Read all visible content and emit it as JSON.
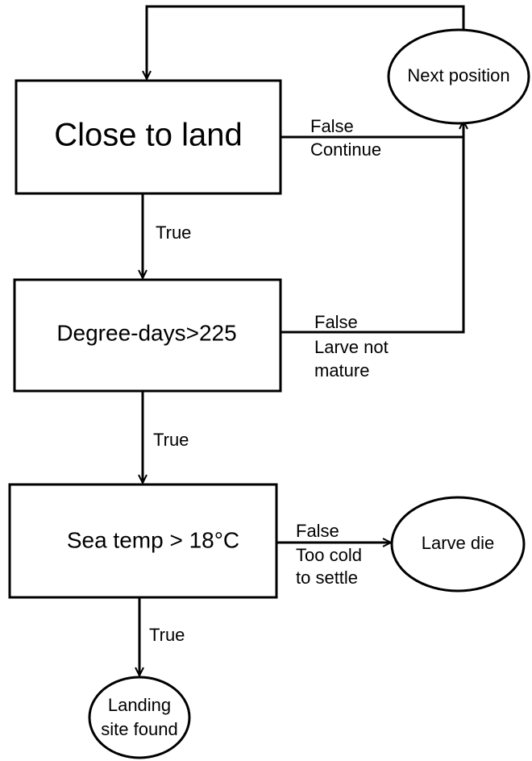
{
  "nodes": [
    {
      "lines": [
        "Close to land"
      ]
    },
    {
      "lines": [
        "Next position"
      ]
    },
    {
      "lines": [
        "Degree-days>225"
      ]
    },
    {
      "lines": [
        "Sea temp > 18°C"
      ]
    },
    {
      "lines": [
        "Larve die"
      ]
    },
    {
      "lines": [
        "Landing",
        "site found"
      ]
    }
  ],
  "edges": [
    {
      "lines": [
        "False",
        "Continue"
      ]
    },
    {
      "lines": [
        "True"
      ]
    },
    {
      "lines": [
        "False",
        "Larve not",
        "mature"
      ]
    },
    {
      "lines": [
        "True"
      ]
    },
    {
      "lines": [
        "False",
        "Too cold",
        "to settle"
      ]
    },
    {
      "lines": [
        "True"
      ]
    }
  ]
}
